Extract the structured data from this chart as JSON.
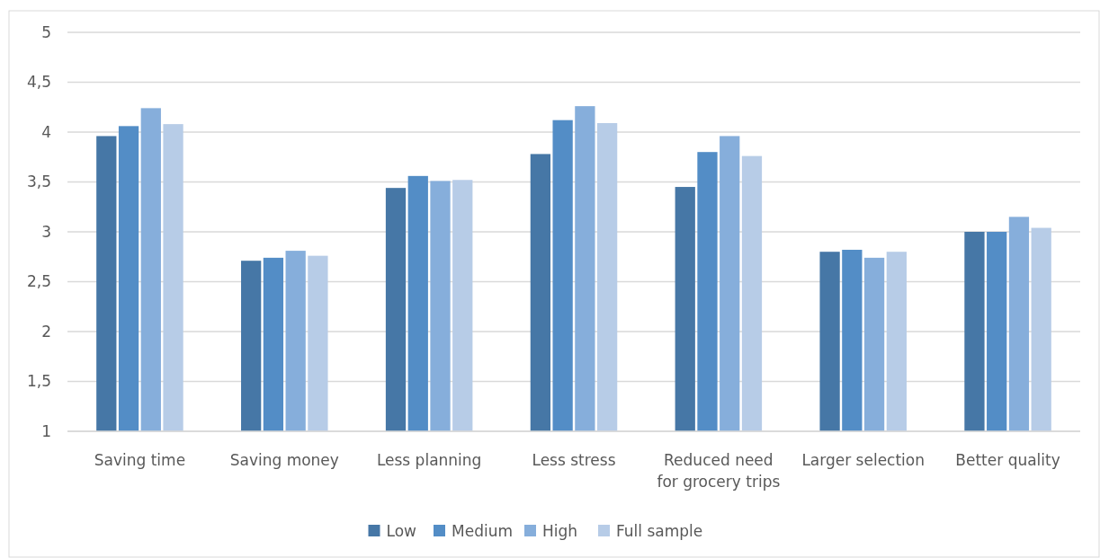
{
  "chart_data": {
    "type": "bar",
    "categories": [
      "Saving time",
      "Saving money",
      "Less planning",
      "Less stress",
      "Reduced need\nfor grocery trips",
      "Larger selection",
      "Better quality"
    ],
    "series": [
      {
        "name": "Low",
        "color": "#4677a6",
        "values": [
          3.96,
          2.71,
          3.44,
          3.78,
          3.45,
          2.8,
          3.0
        ]
      },
      {
        "name": "Medium",
        "color": "#538dc6",
        "values": [
          4.06,
          2.74,
          3.56,
          4.12,
          3.8,
          2.82,
          3.0
        ]
      },
      {
        "name": "High",
        "color": "#86aedb",
        "values": [
          4.24,
          2.81,
          3.51,
          4.26,
          3.96,
          2.74,
          3.15
        ]
      },
      {
        "name": "Full sample",
        "color": "#b7cce7",
        "values": [
          4.08,
          2.76,
          3.52,
          4.09,
          3.76,
          2.8,
          3.04
        ]
      }
    ],
    "ylim": [
      1,
      5
    ],
    "yticks": [
      1,
      {
        "value": 1.5,
        "label": "1,5"
      },
      2,
      {
        "value": 2.5,
        "label": "2,5"
      },
      3,
      {
        "value": 3.5,
        "label": "3,5"
      },
      4,
      {
        "value": 4.5,
        "label": "4,5"
      },
      5
    ],
    "grid": "y",
    "legend": "bottom"
  }
}
